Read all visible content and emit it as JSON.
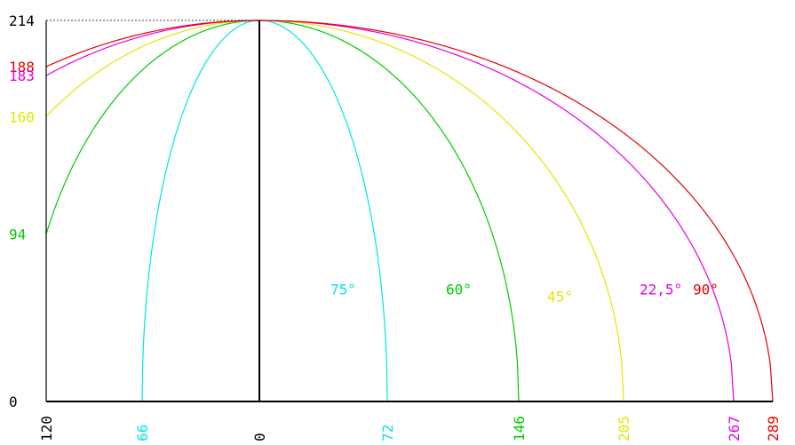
{
  "chart_data": {
    "type": "line",
    "title": "",
    "xlabel": "",
    "ylabel": "",
    "xlim": [
      -120,
      289
    ],
    "ylim": [
      0,
      214
    ],
    "grid": false,
    "x_ticks": [
      {
        "value": -120,
        "label": "120",
        "color": "#000000"
      },
      {
        "value": -66,
        "label": "66",
        "color": "#00e5e5"
      },
      {
        "value": 0,
        "label": "0",
        "color": "#000000"
      },
      {
        "value": 72,
        "label": "72",
        "color": "#00e5e5"
      },
      {
        "value": 146,
        "label": "146",
        "color": "#00cc00"
      },
      {
        "value": 205,
        "label": "205",
        "color": "#e5e500"
      },
      {
        "value": 267,
        "label": "267",
        "color": "#e500e5"
      },
      {
        "value": 289,
        "label": "289",
        "color": "#e50000"
      }
    ],
    "y_ticks": [
      {
        "value": 214,
        "label": "214",
        "color": "#000000"
      },
      {
        "value": 188,
        "label": "188",
        "color": "#e50000"
      },
      {
        "value": 183,
        "label": "183",
        "color": "#e500e5"
      },
      {
        "value": 160,
        "label": "160",
        "color": "#e5e500"
      },
      {
        "value": 94,
        "label": "94",
        "color": "#00cc00"
      },
      {
        "value": 0,
        "label": "0",
        "color": "#000000"
      }
    ],
    "series": [
      {
        "name": "75°",
        "color": "#00e5e5",
        "peak": 214,
        "x_right": 72,
        "x_left": -66,
        "y_at_left": 0,
        "label_anchor": [
          40,
          60
        ]
      },
      {
        "name": "60°",
        "color": "#00cc00",
        "peak": 214,
        "x_right": 146,
        "x_left": -120,
        "y_at_left": 94,
        "label_anchor": [
          105,
          60
        ]
      },
      {
        "name": "45°",
        "color": "#e5e500",
        "peak": 214,
        "x_right": 205,
        "x_left": -120,
        "y_at_left": 160,
        "label_anchor": [
          162,
          56
        ]
      },
      {
        "name": "22,5°",
        "color": "#e500e5",
        "peak": 214,
        "x_right": 267,
        "x_left": -120,
        "y_at_left": 183,
        "label_anchor": [
          214,
          60
        ]
      },
      {
        "name": "90°",
        "color": "#e50000",
        "peak": 214,
        "x_right": 289,
        "x_left": -120,
        "y_at_left": 188,
        "label_anchor": [
          244,
          60
        ]
      }
    ],
    "axis_color": "#000000"
  }
}
